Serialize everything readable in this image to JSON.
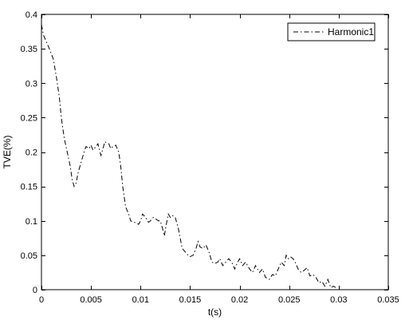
{
  "chart_data": {
    "type": "line",
    "title": "",
    "xlabel": "t(s)",
    "ylabel": "TVE(%)",
    "xlim": [
      0,
      0.035
    ],
    "ylim": [
      0,
      0.4
    ],
    "grid": false,
    "legend_position": "top-right",
    "x_ticks": [
      0,
      0.005,
      0.01,
      0.015,
      0.02,
      0.025,
      0.03,
      0.035
    ],
    "x_tick_labels": [
      "0",
      "0.005",
      "0.01",
      "0.015",
      "0.02",
      "0.025",
      "0.03",
      "0.035"
    ],
    "y_ticks": [
      0,
      0.05,
      0.1,
      0.15,
      0.2,
      0.25,
      0.3,
      0.35,
      0.4
    ],
    "y_tick_labels": [
      "0",
      "0.05",
      "0.1",
      "0.15",
      "0.2",
      "0.25",
      "0.3",
      "0.35",
      "0.4"
    ],
    "series": [
      {
        "name": "Harmonic1",
        "color": "#000000",
        "line_style": "dash-dot",
        "x": [
          0,
          0.0002,
          0.0005,
          0.0008,
          0.0012,
          0.0015,
          0.0018,
          0.002,
          0.0023,
          0.0026,
          0.0029,
          0.0031,
          0.0033,
          0.0035,
          0.0037,
          0.004,
          0.0043,
          0.0045,
          0.0048,
          0.005,
          0.0052,
          0.0055,
          0.0057,
          0.006,
          0.0062,
          0.0064,
          0.0066,
          0.0068,
          0.007,
          0.0072,
          0.0075,
          0.0078,
          0.008,
          0.0082,
          0.0085,
          0.0088,
          0.009,
          0.0093,
          0.0096,
          0.0098,
          0.01,
          0.0102,
          0.0105,
          0.0108,
          0.011,
          0.0113,
          0.0116,
          0.0118,
          0.012,
          0.0122,
          0.0124,
          0.0126,
          0.0128,
          0.013,
          0.0132,
          0.0135,
          0.0138,
          0.014,
          0.0142,
          0.0145,
          0.0148,
          0.015,
          0.0153,
          0.0156,
          0.0158,
          0.016,
          0.0163,
          0.0166,
          0.0169,
          0.0172,
          0.0175,
          0.0178,
          0.018,
          0.0183,
          0.0186,
          0.0189,
          0.0192,
          0.0195,
          0.0198,
          0.02,
          0.0203,
          0.0206,
          0.021,
          0.0213,
          0.0216,
          0.022,
          0.0223,
          0.0226,
          0.023,
          0.0233,
          0.0236,
          0.0239,
          0.0242,
          0.0245,
          0.0247,
          0.0249,
          0.0251,
          0.0254,
          0.0256,
          0.0259,
          0.0262,
          0.0265,
          0.0268,
          0.0271,
          0.0274,
          0.0277,
          0.028,
          0.0283,
          0.0286,
          0.0289,
          0.0292,
          0.0295,
          0.0298
        ],
        "y": [
          0.385,
          0.37,
          0.36,
          0.35,
          0.335,
          0.31,
          0.28,
          0.25,
          0.22,
          0.2,
          0.18,
          0.16,
          0.15,
          0.155,
          0.17,
          0.185,
          0.2,
          0.208,
          0.205,
          0.21,
          0.203,
          0.208,
          0.212,
          0.195,
          0.205,
          0.215,
          0.213,
          0.212,
          0.205,
          0.208,
          0.21,
          0.2,
          0.18,
          0.15,
          0.12,
          0.11,
          0.1,
          0.098,
          0.097,
          0.095,
          0.1,
          0.11,
          0.105,
          0.098,
          0.1,
          0.105,
          0.102,
          0.1,
          0.1,
          0.09,
          0.078,
          0.095,
          0.11,
          0.105,
          0.108,
          0.105,
          0.09,
          0.075,
          0.06,
          0.055,
          0.05,
          0.048,
          0.05,
          0.06,
          0.07,
          0.062,
          0.06,
          0.065,
          0.055,
          0.04,
          0.038,
          0.04,
          0.045,
          0.035,
          0.04,
          0.045,
          0.04,
          0.03,
          0.04,
          0.045,
          0.035,
          0.04,
          0.03,
          0.025,
          0.035,
          0.025,
          0.03,
          0.018,
          0.015,
          0.022,
          0.02,
          0.03,
          0.04,
          0.035,
          0.05,
          0.045,
          0.048,
          0.045,
          0.04,
          0.03,
          0.025,
          0.028,
          0.032,
          0.02,
          0.022,
          0.018,
          0.01,
          0.012,
          0.005,
          0.015,
          0.003,
          0.005,
          0.002
        ]
      }
    ]
  }
}
